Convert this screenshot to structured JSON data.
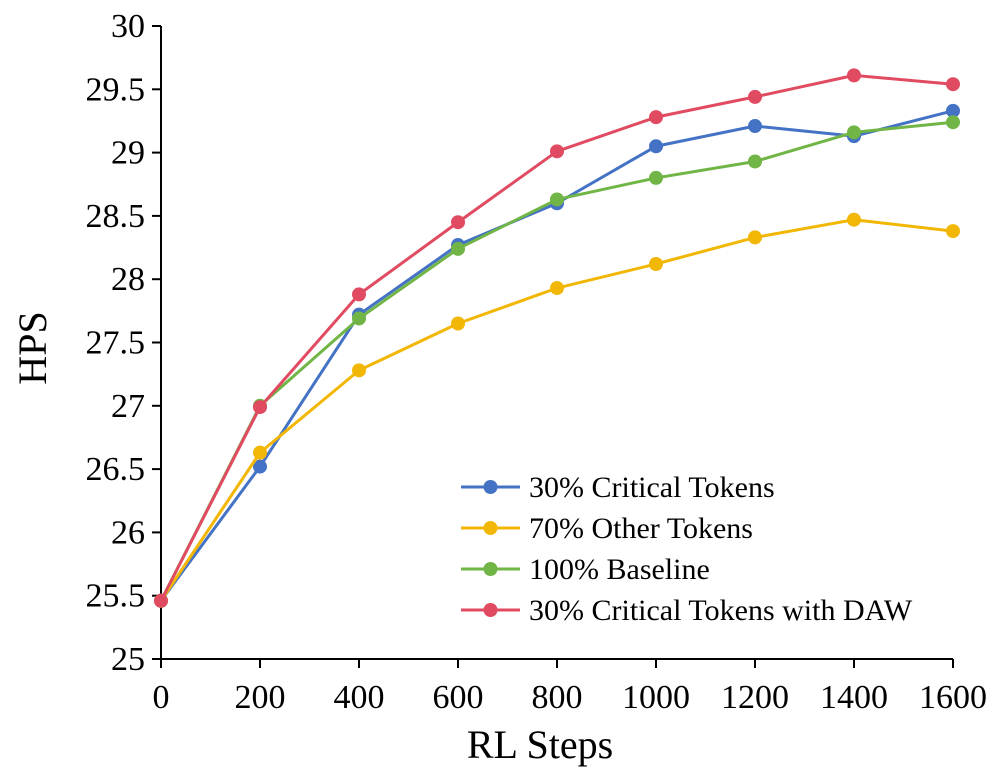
{
  "chart_data": {
    "type": "line",
    "title": "",
    "xlabel": "RL Steps",
    "ylabel": "HPS",
    "x": [
      0,
      200,
      400,
      600,
      800,
      1000,
      1200,
      1400,
      1600
    ],
    "xlim": [
      0,
      1600
    ],
    "ylim": [
      25,
      30
    ],
    "x_ticks": [
      "0",
      "200",
      "400",
      "600",
      "800",
      "1000",
      "1200",
      "1400",
      "1600"
    ],
    "y_ticks": [
      "25",
      "25.5",
      "26",
      "26.5",
      "27",
      "27.5",
      "28",
      "28.5",
      "29",
      "29.5",
      "30"
    ],
    "grid": false,
    "legend_position": "lower-right",
    "series": [
      {
        "name": "30% Critical Tokens",
        "color": "#4472C4",
        "values": [
          25.46,
          26.52,
          27.72,
          28.27,
          28.6,
          29.05,
          29.21,
          29.13,
          29.33
        ]
      },
      {
        "name": "70% Other Tokens",
        "color": "#F2B705",
        "values": [
          25.46,
          26.63,
          27.28,
          27.65,
          27.93,
          28.12,
          28.33,
          28.47,
          28.38
        ]
      },
      {
        "name": "100% Baseline",
        "color": "#70B545",
        "values": [
          25.46,
          27.0,
          27.69,
          28.24,
          28.63,
          28.8,
          28.93,
          29.16,
          29.24
        ]
      },
      {
        "name": "30% Critical Tokens with DAW",
        "color": "#E14B61",
        "values": [
          25.46,
          26.99,
          27.88,
          28.45,
          29.01,
          29.28,
          29.44,
          29.61,
          29.54
        ]
      }
    ]
  }
}
